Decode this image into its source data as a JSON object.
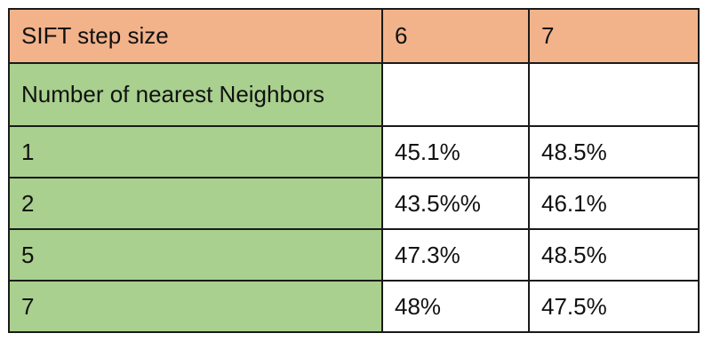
{
  "table": {
    "header": {
      "label": "SIFT step size",
      "columns": [
        "6",
        "7"
      ]
    },
    "subheader": {
      "label": "Number of nearest Neighbors",
      "columns": [
        "",
        ""
      ]
    },
    "rows": [
      {
        "label": "1",
        "values": [
          "45.1%",
          "48.5%"
        ]
      },
      {
        "label": "2",
        "values": [
          "43.5%%",
          "46.1%"
        ]
      },
      {
        "label": "5",
        "values": [
          "47.3%",
          "48.5%"
        ]
      },
      {
        "label": "7",
        "values": [
          "48%",
          "47.5%"
        ]
      }
    ]
  },
  "colors": {
    "header_background": "#f2b38b",
    "label_background": "#a9d08e",
    "value_background": "#ffffff",
    "border": "#1a1a1a"
  }
}
